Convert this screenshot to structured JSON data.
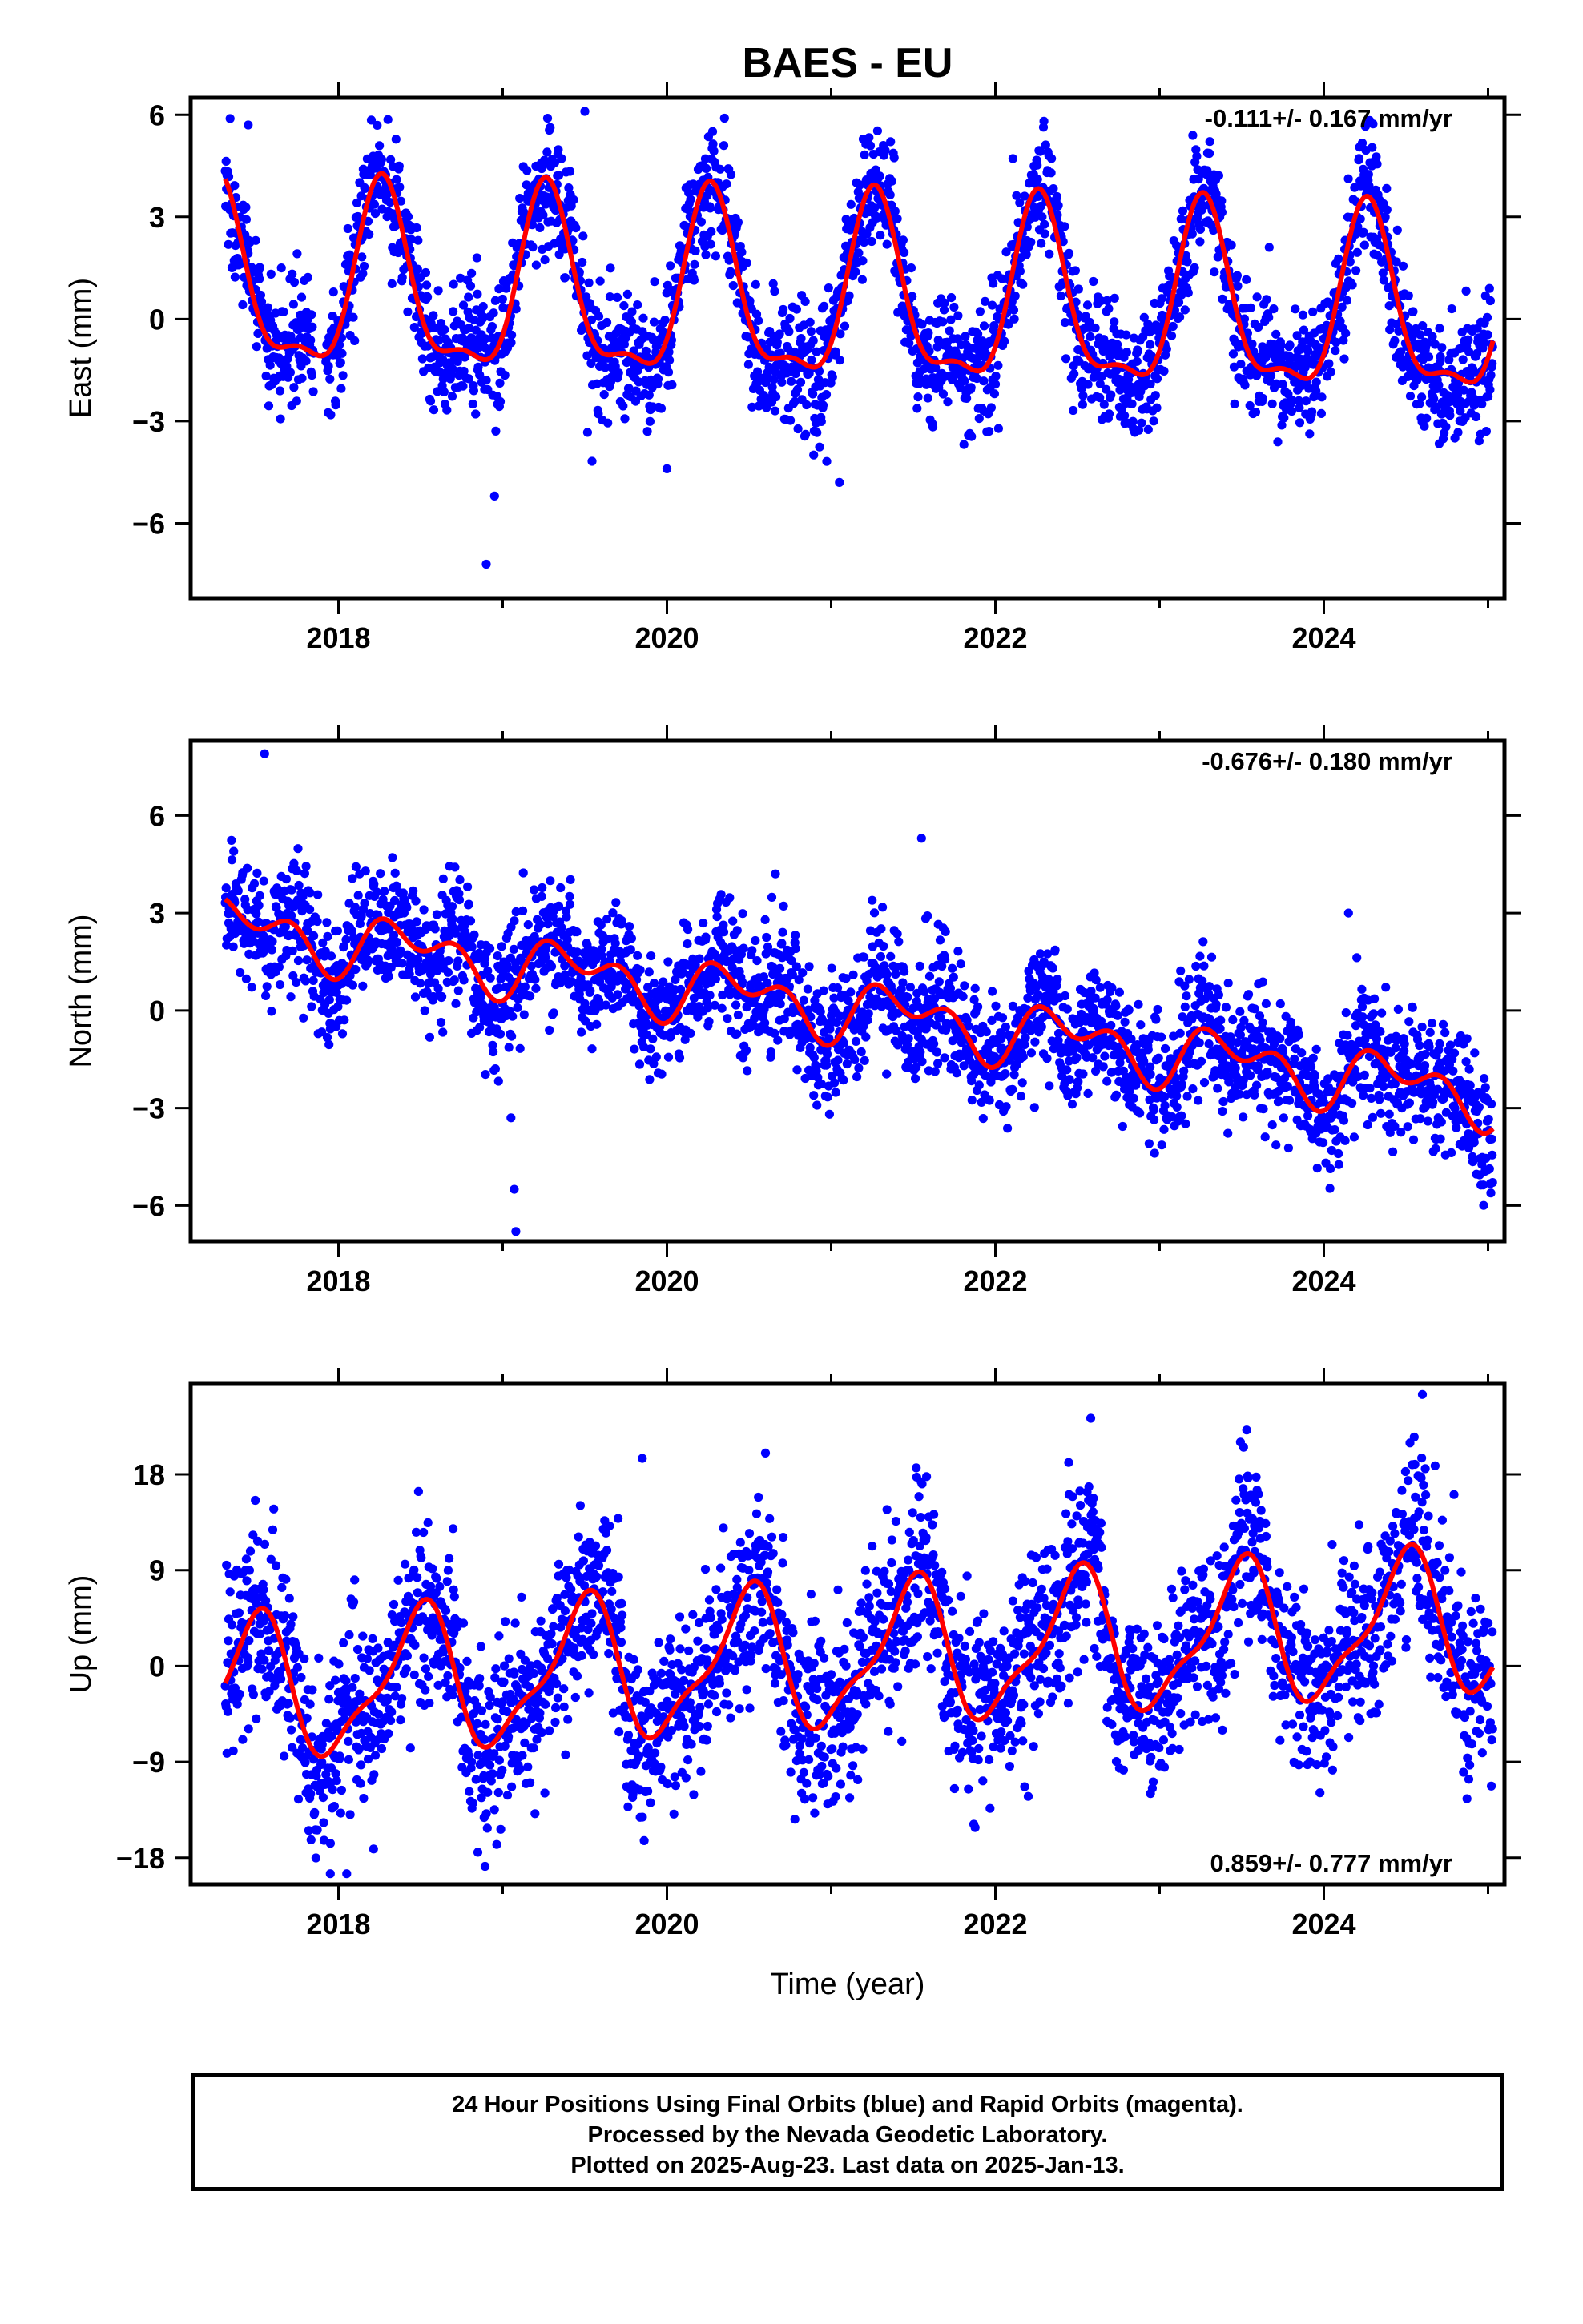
{
  "title": "BAES - EU",
  "xlabel": "Time (year)",
  "footer": {
    "line1": "24 Hour Positions Using Final Orbits (blue) and Rapid Orbits (magenta).",
    "line2": "Processed by the Nevada Geodetic Laboratory.",
    "line3": "Plotted on 2025-Aug-23. Last data on 2025-Jan-13."
  },
  "colors": {
    "points": "#0000ff",
    "model": "#ff0000",
    "axes": "#000000",
    "background": "#ffffff"
  },
  "chart_data": [
    {
      "type": "scatter",
      "name": "east",
      "ylabel": "East (mm)",
      "rate_label": "-0.111+/- 0.167 mm/yr",
      "rate_position": "top-right",
      "xlim": [
        2017.1,
        2025.1
      ],
      "ylim": [
        -8.2,
        6.5
      ],
      "xticks": [
        2018,
        2020,
        2022,
        2024
      ],
      "yticks": [
        6,
        3,
        0,
        -3,
        -6
      ],
      "ytick_labels": [
        "6",
        "3",
        "0",
        "−3",
        "−6"
      ],
      "model": {
        "description": "trend plus annual and semi-annual terms, values in mm",
        "x0": 2021.0,
        "offset": 0.5,
        "rate": -0.111,
        "annual_cos": -0.3,
        "annual_sin": 2.55,
        "semi_cos": -0.9,
        "semi_sin": -0.1
      },
      "scatter_noise_sd": 0.9,
      "outliers": [
        [
          2018.9,
          -7.2
        ],
        [
          2018.95,
          -5.2
        ],
        [
          2020.0,
          -4.4
        ],
        [
          2021.05,
          -4.8
        ],
        [
          2019.5,
          6.1
        ],
        [
          2020.35,
          5.9
        ],
        [
          2017.45,
          5.7
        ]
      ],
      "gaps": [
        [
          2017.85,
          2017.92
        ]
      ]
    },
    {
      "type": "scatter",
      "name": "north",
      "ylabel": "North (mm)",
      "rate_label": "-0.676+/- 0.180 mm/yr",
      "rate_position": "top-right",
      "xlim": [
        2017.1,
        2025.1
      ],
      "ylim": [
        -7.1,
        8.3
      ],
      "xticks": [
        2018,
        2020,
        2022,
        2024
      ],
      "yticks": [
        6,
        3,
        0,
        -3,
        -6
      ],
      "ytick_labels": [
        "6",
        "3",
        "0",
        "−3",
        "−6"
      ],
      "model": {
        "description": "trend plus annual and semi-annual terms, values in mm",
        "x0": 2021.0,
        "offset": 0.1,
        "rate": -0.676,
        "annual_cos": -0.6,
        "annual_sin": 0.3,
        "semi_cos": -0.55,
        "semi_sin": 0.1
      },
      "scatter_noise_sd": 0.95,
      "outliers": [
        [
          2017.55,
          7.9
        ],
        [
          2019.07,
          -5.5
        ],
        [
          2019.08,
          -6.8
        ],
        [
          2019.05,
          -3.3
        ],
        [
          2024.15,
          3.0
        ],
        [
          2021.55,
          5.3
        ]
      ],
      "gaps": []
    },
    {
      "type": "scatter",
      "name": "up",
      "ylabel": "Up (mm)",
      "rate_label": "0.859+/- 0.777 mm/yr",
      "rate_position": "bottom-right",
      "xlim": [
        2017.1,
        2025.1
      ],
      "ylim": [
        -20.5,
        26.5
      ],
      "xticks": [
        2018,
        2020,
        2022,
        2024
      ],
      "yticks": [
        18,
        9,
        0,
        -9,
        -18
      ],
      "ytick_labels": [
        "18",
        "9",
        "0",
        "−9",
        "−18"
      ],
      "model": {
        "description": "trend plus annual and semi-annual terms, values in mm",
        "x0": 2021.0,
        "offset": 0.7,
        "rate": 0.859,
        "annual_cos": -6.2,
        "annual_sin": 0.6,
        "semi_cos": 1.2,
        "semi_sin": 1.6
      },
      "scatter_noise_sd": 4.3,
      "outliers": [
        [
          2024.6,
          25.5
        ],
        [
          2024.55,
          21.5
        ],
        [
          2018.05,
          -19.5
        ],
        [
          2017.95,
          -19.5
        ],
        [
          2019.85,
          19.5
        ],
        [
          2020.6,
          20.0
        ]
      ],
      "gaps": []
    }
  ]
}
